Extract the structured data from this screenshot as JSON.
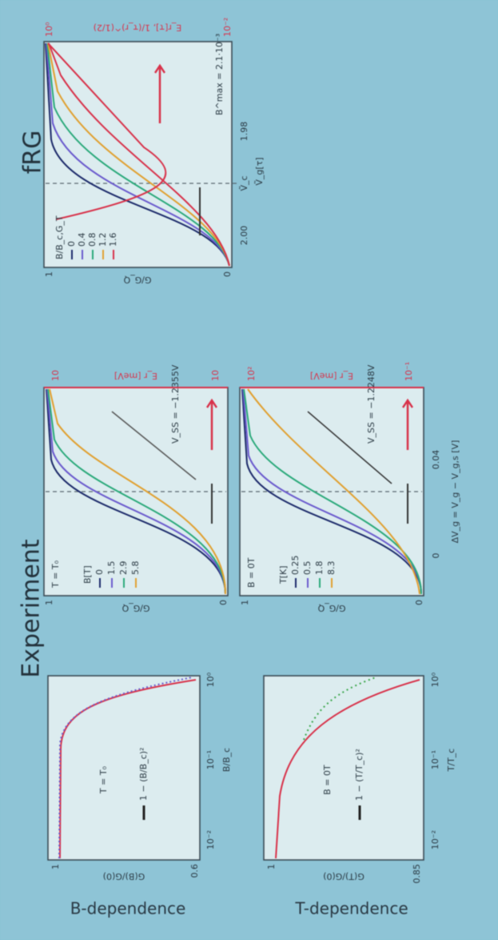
{
  "title_left": "Experiment",
  "title_right": "fRG",
  "row_labels": [
    "B-dependence",
    "T-dependence"
  ],
  "b_scaling": {
    "ylabel": "G(B)/G(0)",
    "xlabel": "B/B_c",
    "yticks": [
      "1",
      "0.6"
    ],
    "xticks": [
      "10⁻²",
      "10⁻¹",
      "10⁰"
    ],
    "annotation": "T = T₀",
    "legend": "1 − (B/B_c)²"
  },
  "t_scaling": {
    "ylabel": "G(T)/G(0)",
    "xlabel": "T/T_c",
    "yticks": [
      "1",
      "0.85"
    ],
    "xticks": [
      "10⁻²",
      "10⁻¹",
      "10⁰"
    ],
    "annotation": "B = 0T",
    "legend": "1 − (T/T_c)²"
  },
  "exp_b": {
    "ylabel": "G/G_Q",
    "yticks": [
      "1",
      "0"
    ],
    "right_label": "E_r [meV]",
    "right_ticks": [
      "10",
      "10"
    ],
    "annotation": "T = T₀",
    "legend_title": "B[T]",
    "legend": [
      "0",
      "1.5",
      "2.9",
      "5.8"
    ],
    "note": "V_SS = −1.2355V"
  },
  "exp_t": {
    "ylabel": "G/G_Q",
    "yticks": [
      "1",
      "0"
    ],
    "right_label": "E_r [meV]",
    "right_ticks": [
      "10²",
      "10⁻¹"
    ],
    "xticks": [
      "0",
      "0.04"
    ],
    "xlabel": "ΔV_g = V_g − V_g,s [V]",
    "annotation": "B = 0T",
    "legend_title": "T[K]",
    "legend": [
      "0.25",
      "0.5",
      "1.8",
      "8.3"
    ],
    "note": "V_SS = −1.2248V"
  },
  "frg": {
    "ylabel": "G/G_Q",
    "yticks": [
      "1",
      "0"
    ],
    "right_label": "E_r[τ], 1/(τ_r)^(1/2)",
    "right_ticks": [
      "10⁰",
      "10⁻²"
    ],
    "xticks": [
      "2.00",
      "1.98"
    ],
    "xlabel": "Ṽ_g[τ]",
    "marker": "Ṽ_c",
    "legend_title": "B/B_c,G_T",
    "legend": [
      "0",
      "0.4",
      "0.8",
      "1.2",
      "1.6"
    ],
    "note": "B^max = 2.1·10⁻³"
  }
}
